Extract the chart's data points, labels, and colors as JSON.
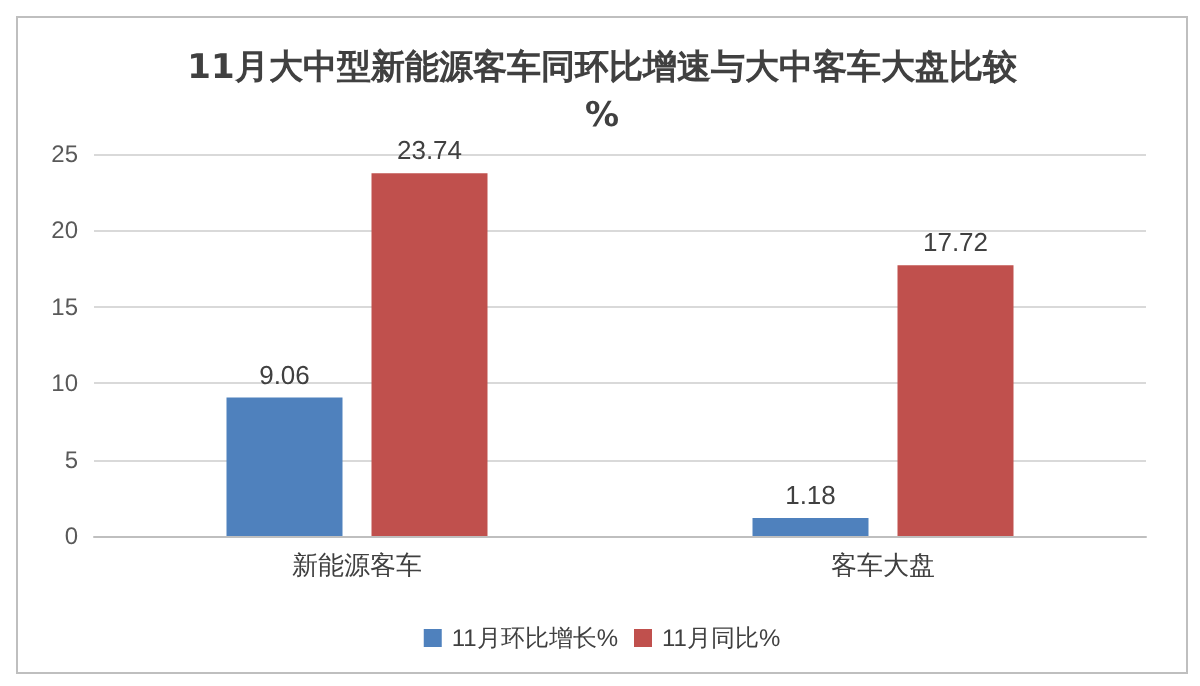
{
  "chart_data": {
    "type": "bar",
    "title": "11月大中型新能源客车同环比增速与大中客车大盘比较%",
    "categories": [
      "新能源客车",
      "客车大盘"
    ],
    "series": [
      {
        "name": "11月环比增长%",
        "color": "#4f81bd",
        "values": [
          9.06,
          1.18
        ]
      },
      {
        "name": "11月同比%",
        "color": "#c0504d",
        "values": [
          23.74,
          17.72
        ]
      }
    ],
    "ylim": [
      0,
      25
    ],
    "yticks": [
      0,
      5,
      10,
      15,
      20,
      25
    ],
    "grid": "y",
    "legend": "bottom",
    "data_labels": true
  }
}
